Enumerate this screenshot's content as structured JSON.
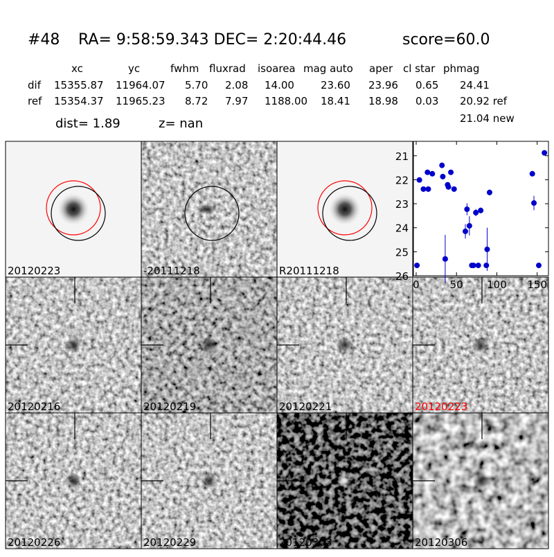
{
  "header": {
    "id": "#48",
    "coords": "RA= 9:58:59.343 DEC= 2:20:44.46",
    "score": "score=60.0"
  },
  "table": {
    "columns": [
      "xc",
      "yc",
      "fwhm",
      "fluxrad",
      "isoarea",
      "mag auto",
      "aper",
      "cl star",
      "phmag"
    ],
    "rows": [
      {
        "label": "dif",
        "cells": [
          "15355.87",
          "11964.07",
          "5.70",
          "2.08",
          "14.00",
          "23.60",
          "23.96",
          "0.65",
          "24.41"
        ]
      },
      {
        "label": "ref",
        "cells": [
          "15354.37",
          "11965.23",
          "8.72",
          "7.97",
          "1188.00",
          "18.41",
          "18.98",
          "0.03",
          "20.92 ref"
        ]
      }
    ],
    "extra": "21.04 new"
  },
  "dist": "dist=  1.89",
  "z": "z=   nan",
  "panels": [
    {
      "label": "20120223"
    },
    {
      "label": "-20111218"
    },
    {
      "label": "R20111218"
    },
    {
      "label": "20120216"
    },
    {
      "label": "20120219"
    },
    {
      "label": "20120221"
    },
    {
      "label": "20120223",
      "color": "red"
    },
    {
      "label": "20120226"
    },
    {
      "label": "20120229"
    },
    {
      "label": "20120303"
    },
    {
      "label": "20120306"
    }
  ],
  "chart_data": {
    "type": "scatter",
    "color": "#0000cc",
    "x": [
      1,
      4,
      9,
      14,
      15,
      20,
      32,
      33,
      36,
      39,
      40,
      43,
      47,
      61,
      63,
      66,
      69,
      71,
      74,
      77,
      80,
      87,
      88,
      91,
      144,
      146,
      152,
      159
    ],
    "values": [
      25.57,
      22.01,
      22.39,
      21.69,
      22.39,
      21.75,
      21.4,
      21.87,
      25.3,
      22.21,
      22.3,
      21.69,
      22.39,
      24.15,
      23.23,
      23.92,
      25.57,
      25.57,
      23.37,
      25.57,
      23.28,
      25.57,
      24.9,
      22.53,
      21.75,
      22.97,
      25.57,
      20.88
    ],
    "errors": [
      0.05,
      0.08,
      0.08,
      0.05,
      0.06,
      0.05,
      0.05,
      0.07,
      1.0,
      0.08,
      0.08,
      0.07,
      0.09,
      0.3,
      0.25,
      0.4,
      0.05,
      0.05,
      0.15,
      0.05,
      0.12,
      0.05,
      0.9,
      0.12,
      0.06,
      0.3,
      0.05,
      0.05
    ],
    "xlim": [
      -3.4,
      164
    ],
    "ylim": [
      26,
      20.4
    ],
    "xticks": [
      0,
      50,
      100,
      150
    ],
    "yticks": [
      21,
      22,
      23,
      24,
      25,
      26
    ]
  }
}
